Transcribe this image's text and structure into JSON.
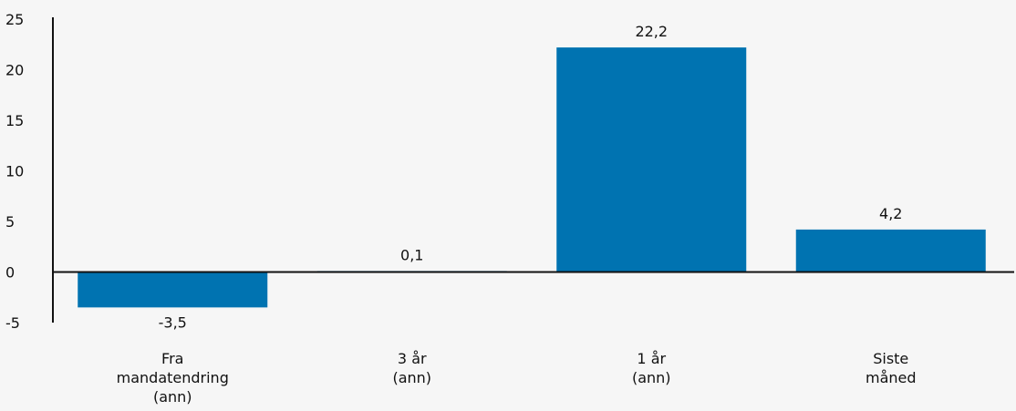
{
  "chart_data": {
    "type": "bar",
    "categories": [
      [
        "Fra",
        "mandatendring",
        "(ann)"
      ],
      [
        "3 år",
        "(ann)"
      ],
      [
        "1 år",
        "(ann)"
      ],
      [
        "Siste",
        "måned"
      ]
    ],
    "values": [
      -3.5,
      0.1,
      22.2,
      4.2
    ],
    "data_labels": [
      "-3,5",
      "0,1",
      "22,2",
      "4,2"
    ],
    "yticks": [
      25,
      20,
      15,
      10,
      5,
      0,
      -5
    ],
    "ylim": [
      -5,
      25
    ],
    "title": "",
    "xlabel": "",
    "ylabel": "",
    "grid": false,
    "colors": {
      "bar": "#0073b1",
      "axis": "#111111",
      "background": "#f6f6f6"
    }
  }
}
